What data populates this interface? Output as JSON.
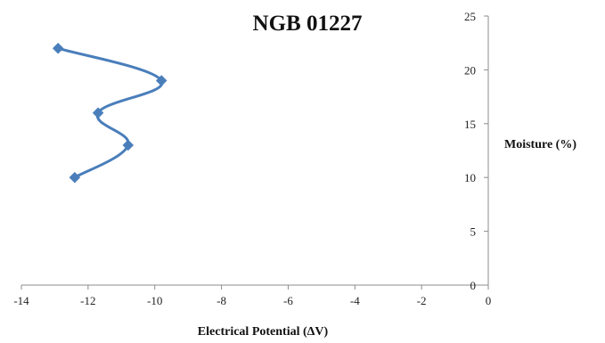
{
  "chart_data": {
    "type": "line",
    "title": "NGB 01227",
    "xlabel": "Electrical Potential (ΔV)",
    "ylabel": "Moisture (%)",
    "xlim": [
      -14,
      0
    ],
    "ylim": [
      0,
      25
    ],
    "x_ticks": [
      "-14",
      "-12",
      "-10",
      "-8",
      "-6",
      "-4",
      "-2",
      "0"
    ],
    "y_ticks": [
      "0",
      "5",
      "10",
      "15",
      "20",
      "25"
    ],
    "y_axis_position": "right",
    "grid": false,
    "legend": "none",
    "series": [
      {
        "color": "#4a7ebb",
        "marker": "diamond",
        "smooth": true,
        "points": [
          {
            "x": -12.4,
            "y": 10
          },
          {
            "x": -10.8,
            "y": 13
          },
          {
            "x": -11.7,
            "y": 16
          },
          {
            "x": -9.8,
            "y": 19
          },
          {
            "x": -12.9,
            "y": 22
          }
        ]
      }
    ]
  }
}
